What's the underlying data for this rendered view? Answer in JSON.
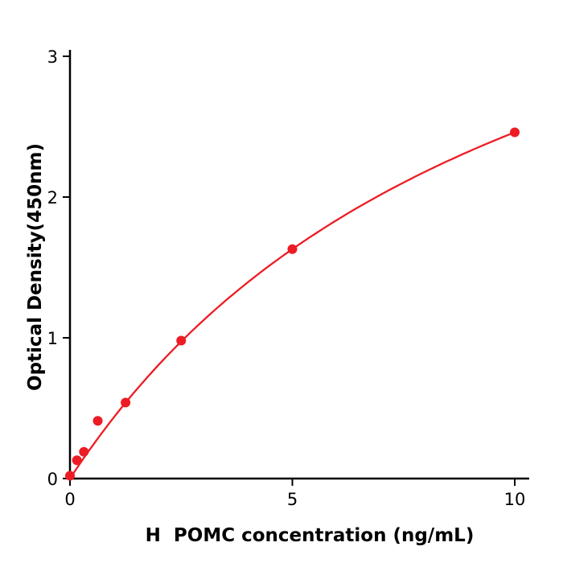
{
  "chart_data": {
    "type": "scatter",
    "title": "",
    "xlabel": "H  POMC concentration (ng/mL)",
    "ylabel": "Optical Density(450nm)",
    "x": [
      0,
      0.156,
      0.313,
      0.625,
      1.25,
      2.5,
      5,
      10
    ],
    "y": [
      0.02,
      0.13,
      0.19,
      0.41,
      0.54,
      0.98,
      1.63,
      2.46
    ],
    "xlim": [
      0,
      10
    ],
    "ylim": [
      0,
      3
    ],
    "x_ticks": [
      0,
      5,
      10
    ],
    "y_ticks": [
      0,
      1,
      2,
      3
    ],
    "color": "#ed1c24",
    "axis_color": "#000000",
    "curve": "saturating-fit-line",
    "grid": false,
    "legend": "none"
  }
}
